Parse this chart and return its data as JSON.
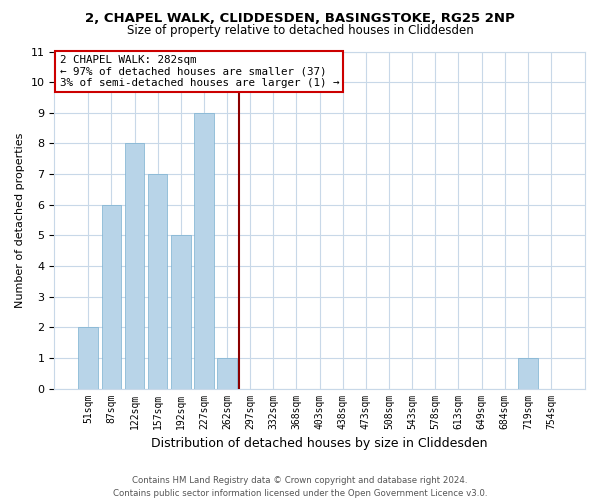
{
  "title1": "2, CHAPEL WALK, CLIDDESDEN, BASINGSTOKE, RG25 2NP",
  "title2": "Size of property relative to detached houses in Cliddesden",
  "xlabel": "Distribution of detached houses by size in Cliddesden",
  "ylabel": "Number of detached properties",
  "bar_labels": [
    "51sqm",
    "87sqm",
    "122sqm",
    "157sqm",
    "192sqm",
    "227sqm",
    "262sqm",
    "297sqm",
    "332sqm",
    "368sqm",
    "403sqm",
    "438sqm",
    "473sqm",
    "508sqm",
    "543sqm",
    "578sqm",
    "613sqm",
    "649sqm",
    "684sqm",
    "719sqm",
    "754sqm"
  ],
  "bar_values": [
    2,
    6,
    8,
    7,
    5,
    9,
    1,
    0,
    0,
    0,
    0,
    0,
    0,
    0,
    0,
    0,
    0,
    0,
    0,
    1,
    0
  ],
  "bar_color": "#b8d4e8",
  "ylim": [
    0,
    11
  ],
  "yticks": [
    0,
    1,
    2,
    3,
    4,
    5,
    6,
    7,
    8,
    9,
    10,
    11
  ],
  "annotation_title": "2 CHAPEL WALK: 282sqm",
  "annotation_line1": "← 97% of detached houses are smaller (37)",
  "annotation_line2": "3% of semi-detached houses are larger (1) →",
  "footer1": "Contains HM Land Registry data © Crown copyright and database right 2024.",
  "footer2": "Contains public sector information licensed under the Open Government Licence v3.0.",
  "bg_color": "#ffffff",
  "grid_color": "#c8d8e8",
  "vline_x": 6.5,
  "vline_color": "#8b0000"
}
